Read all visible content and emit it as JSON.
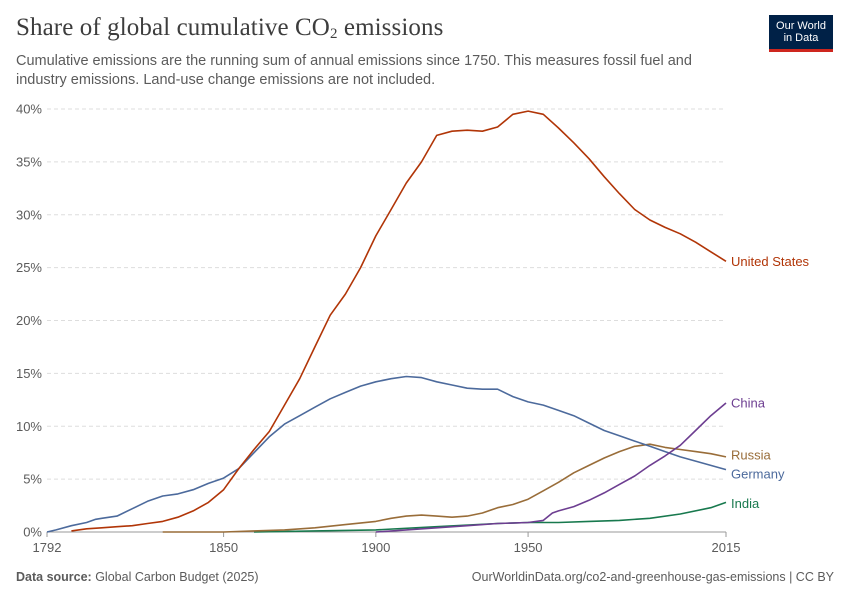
{
  "header": {
    "title_main": "Share of global cumulative CO",
    "title_sub": "2",
    "title_end": " emissions",
    "subtitle": "Cumulative emissions are the running sum of annual emissions since 1750. This measures fossil fuel and industry emissions. Land-use change emissions are not included.",
    "logo_line1": "Our World",
    "logo_line2": "in Data"
  },
  "footer": {
    "source_label": "Data source:",
    "source_text": " Global Carbon Budget (2025)",
    "url_text": "OurWorldinData.org/co2-and-greenhouse-gas-emissions | CC BY"
  },
  "colors": {
    "grid": "#dddddd",
    "axis": "#999999",
    "tick_text": "#5b5b5b"
  },
  "chart_data": {
    "type": "line",
    "title": "Share of global cumulative CO₂ emissions",
    "xlabel": "",
    "ylabel": "",
    "xlim": [
      1792,
      2015
    ],
    "ylim": [
      0,
      40
    ],
    "x_ticks": [
      {
        "value": 1792,
        "label": "1792"
      },
      {
        "value": 1850,
        "label": "1850"
      },
      {
        "value": 1900,
        "label": "1900"
      },
      {
        "value": 1950,
        "label": "1950"
      },
      {
        "value": 2015,
        "label": "2015"
      }
    ],
    "y_ticks": [
      {
        "value": 0,
        "label": "0%"
      },
      {
        "value": 5,
        "label": "5%"
      },
      {
        "value": 10,
        "label": "10%"
      },
      {
        "value": 15,
        "label": "15%"
      },
      {
        "value": 20,
        "label": "20%"
      },
      {
        "value": 25,
        "label": "25%"
      },
      {
        "value": 30,
        "label": "30%"
      },
      {
        "value": 35,
        "label": "35%"
      },
      {
        "value": 40,
        "label": "40%"
      }
    ],
    "grid": true,
    "legend": "line-end labels",
    "series": [
      {
        "name": "United States",
        "color": "#b13507",
        "x": [
          1800,
          1805,
          1810,
          1815,
          1820,
          1825,
          1830,
          1835,
          1840,
          1845,
          1850,
          1855,
          1860,
          1865,
          1870,
          1875,
          1880,
          1885,
          1890,
          1895,
          1900,
          1905,
          1910,
          1915,
          1920,
          1925,
          1930,
          1935,
          1940,
          1945,
          1950,
          1955,
          1960,
          1965,
          1970,
          1975,
          1980,
          1985,
          1990,
          1995,
          2000,
          2005,
          2010,
          2015
        ],
        "y": [
          0.1,
          0.3,
          0.4,
          0.5,
          0.6,
          0.8,
          1.0,
          1.4,
          2.0,
          2.8,
          4.0,
          6.0,
          7.8,
          9.5,
          12.0,
          14.5,
          17.5,
          20.5,
          22.5,
          25.0,
          28.0,
          30.5,
          33.0,
          35.0,
          37.5,
          37.9,
          38.0,
          37.9,
          38.3,
          39.5,
          39.8,
          39.5,
          38.2,
          36.8,
          35.3,
          33.6,
          32.0,
          30.5,
          29.5,
          28.8,
          28.2,
          27.4,
          26.5,
          25.6
        ]
      },
      {
        "name": "Germany",
        "color": "#4c6a9c",
        "x": [
          1792,
          1795,
          1800,
          1805,
          1808,
          1810,
          1815,
          1820,
          1825,
          1830,
          1835,
          1840,
          1845,
          1850,
          1855,
          1860,
          1865,
          1870,
          1875,
          1880,
          1885,
          1890,
          1895,
          1900,
          1905,
          1910,
          1915,
          1920,
          1925,
          1930,
          1935,
          1940,
          1945,
          1950,
          1955,
          1960,
          1965,
          1970,
          1975,
          1980,
          1985,
          1990,
          1995,
          2000,
          2005,
          2010,
          2015
        ],
        "y": [
          0.0,
          0.2,
          0.6,
          0.9,
          1.2,
          1.3,
          1.5,
          2.2,
          2.9,
          3.4,
          3.6,
          4.0,
          4.6,
          5.1,
          6.0,
          7.5,
          9.0,
          10.2,
          11.0,
          11.8,
          12.6,
          13.2,
          13.8,
          14.2,
          14.5,
          14.7,
          14.6,
          14.2,
          13.9,
          13.6,
          13.5,
          13.5,
          12.8,
          12.3,
          12.0,
          11.5,
          11.0,
          10.3,
          9.6,
          9.1,
          8.6,
          8.1,
          7.6,
          7.1,
          6.7,
          6.3,
          5.9
        ]
      },
      {
        "name": "Russia",
        "color": "#996d39",
        "x": [
          1830,
          1840,
          1850,
          1860,
          1870,
          1880,
          1890,
          1900,
          1905,
          1910,
          1915,
          1920,
          1925,
          1930,
          1935,
          1940,
          1945,
          1950,
          1955,
          1960,
          1965,
          1970,
          1975,
          1980,
          1985,
          1990,
          1995,
          2000,
          2005,
          2010,
          2015
        ],
        "y": [
          0.0,
          0.0,
          0.0,
          0.1,
          0.2,
          0.4,
          0.7,
          1.0,
          1.3,
          1.5,
          1.6,
          1.5,
          1.4,
          1.5,
          1.8,
          2.3,
          2.6,
          3.1,
          3.9,
          4.7,
          5.6,
          6.3,
          7.0,
          7.6,
          8.1,
          8.3,
          8.0,
          7.8,
          7.6,
          7.4,
          7.1
        ]
      },
      {
        "name": "China",
        "color": "#6d3e91",
        "x": [
          1900,
          1910,
          1920,
          1930,
          1940,
          1950,
          1955,
          1958,
          1960,
          1965,
          1970,
          1975,
          1980,
          1985,
          1990,
          1995,
          2000,
          2005,
          2010,
          2015
        ],
        "y": [
          0.0,
          0.2,
          0.4,
          0.6,
          0.8,
          0.9,
          1.1,
          1.8,
          2.0,
          2.4,
          3.0,
          3.7,
          4.5,
          5.3,
          6.3,
          7.2,
          8.2,
          9.6,
          11.0,
          12.2
        ]
      },
      {
        "name": "India",
        "color": "#18794e",
        "x": [
          1860,
          1880,
          1900,
          1920,
          1940,
          1950,
          1960,
          1970,
          1980,
          1990,
          2000,
          2010,
          2015
        ],
        "y": [
          0.0,
          0.1,
          0.2,
          0.5,
          0.8,
          0.9,
          0.9,
          1.0,
          1.1,
          1.3,
          1.7,
          2.3,
          2.8
        ]
      }
    ],
    "end_label_y": {
      "United States": 25.6,
      "China": 12.2,
      "Russia": 7.3,
      "Germany": 5.5,
      "India": 2.7
    }
  }
}
